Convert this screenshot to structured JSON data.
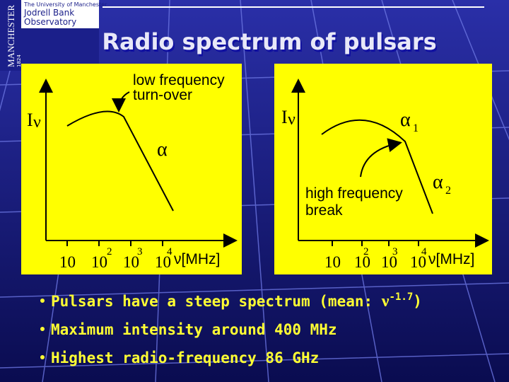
{
  "logo": {
    "university": "The University of Manchester",
    "name_line1": "Jodrell Bank",
    "name_line2": "Observatory",
    "side": "MANCHESTER",
    "year": "1824"
  },
  "title": "Radio spectrum of pulsars",
  "diagrams": [
    {
      "y_label": "I",
      "y_label_sub": "ν",
      "x_label": "ν[MHz]",
      "ticks": [
        "10",
        "10",
        "10",
        "10"
      ],
      "tick_exponents": [
        "2",
        "3",
        "4"
      ],
      "annotations": [
        "low frequency",
        "turn-over",
        "α"
      ]
    },
    {
      "y_label": "I",
      "y_label_sub": "ν",
      "x_label": "ν[MHz]",
      "ticks": [
        "10",
        "10",
        "10",
        "10"
      ],
      "tick_exponents": [
        "2",
        "3",
        "4"
      ],
      "annotations": [
        "α",
        "1",
        "α",
        "2",
        "high frequency",
        "break"
      ]
    }
  ],
  "bullets": [
    {
      "text": "Pulsars have a steep spectrum (mean: ",
      "symbol": "ν",
      "exponent": "-1.7",
      "end": ")"
    },
    {
      "text": "Maximum intensity around 400 MHz"
    },
    {
      "text": "Highest radio-frequency 86 GHz"
    }
  ]
}
